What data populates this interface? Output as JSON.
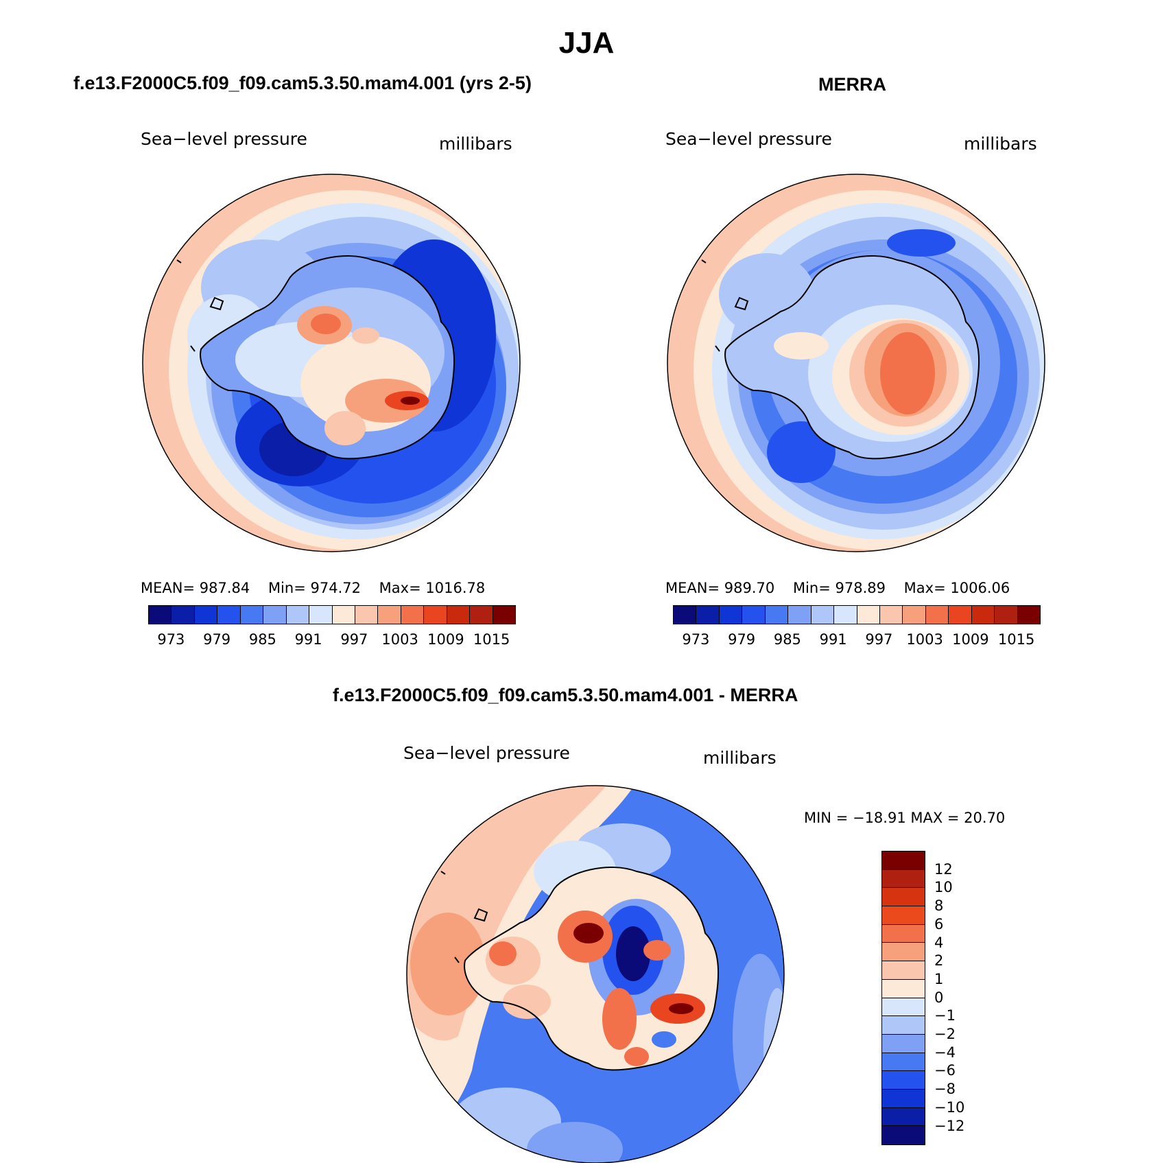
{
  "figure": {
    "title": "JJA",
    "panel_left": {
      "title": "f.e13.F2000C5.f09_f09.cam5.3.50.mam4.001 (yrs 2-5)",
      "variable": "Sea−level pressure",
      "units": "millibars",
      "mean_label": "MEAN=",
      "mean": "987.84",
      "min_label": "Min=",
      "min": "974.72",
      "max_label": "Max=",
      "max": "1016.78"
    },
    "panel_right": {
      "title": "MERRA",
      "variable": "Sea−level pressure",
      "units": "millibars",
      "mean_label": "MEAN=",
      "mean": "989.70",
      "min_label": "Min=",
      "min": "978.89",
      "max_label": "Max=",
      "max": "1006.06"
    },
    "panel_diff": {
      "title": "f.e13.F2000C5.f09_f09.cam5.3.50.mam4.001 - MERRA",
      "variable": "Sea−level pressure",
      "units": "millibars",
      "minmax": "MIN = −18.91 MAX =   20.70"
    },
    "abs_colorbar": {
      "ticks": [
        "973",
        "979",
        "985",
        "991",
        "997",
        "1003",
        "1009",
        "1015"
      ],
      "colors": [
        "#0a0a78",
        "#0a1ea8",
        "#0f35d6",
        "#2352ef",
        "#4679f2",
        "#7ea0f5",
        "#afc6f8",
        "#d8e6fb",
        "#fde9d8",
        "#fac7ae",
        "#f7a17c",
        "#f2714a",
        "#e84520",
        "#c92a0e",
        "#b02010",
        "#7a0000"
      ]
    },
    "diff_colorbar": {
      "ticks": [
        "12",
        "10",
        "8",
        "6",
        "4",
        "2",
        "1",
        "0",
        "−1",
        "−2",
        "−4",
        "−6",
        "−8",
        "−10",
        "−12"
      ],
      "colors": [
        "#7a0000",
        "#b02010",
        "#d63410",
        "#ea4a1c",
        "#f2714a",
        "#f7a17c",
        "#fac7ae",
        "#fde9d8",
        "#d8e6fb",
        "#afc6f8",
        "#7ea0f5",
        "#4679f2",
        "#2352ef",
        "#0f35d6",
        "#0a1ea8",
        "#0a0a78"
      ]
    }
  }
}
